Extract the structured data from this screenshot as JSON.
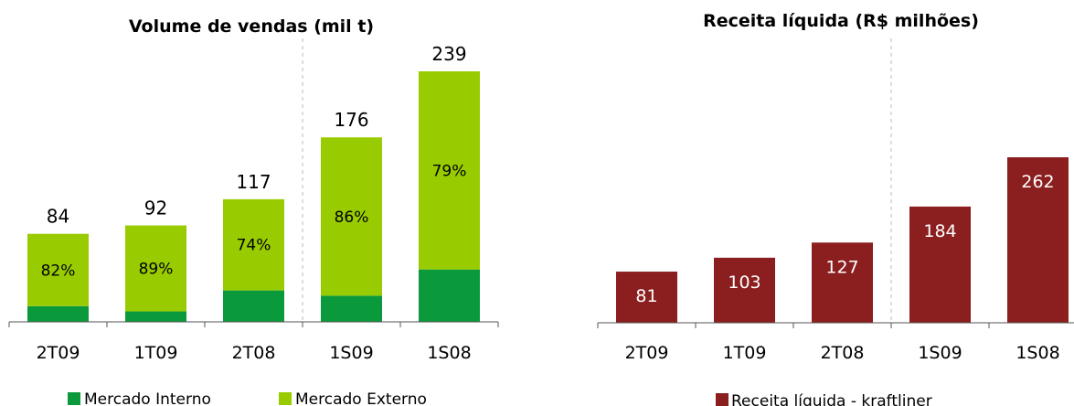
{
  "colors": {
    "interno": "#0a9a3b",
    "externo": "#99cc00",
    "receita": "#8b1e1e",
    "axis": "#555555",
    "divider": "#bbbbbb"
  },
  "chart_data": [
    {
      "type": "bar",
      "stacked": true,
      "title": "Volume de vendas (mil t)",
      "categories": [
        "2T09",
        "1T09",
        "2T08",
        "1S09",
        "1S08"
      ],
      "totals": [
        84,
        92,
        117,
        176,
        239
      ],
      "percent_labels": [
        "82%",
        "89%",
        "74%",
        "86%",
        "79%"
      ],
      "series": [
        {
          "name": "Mercado Interno",
          "values": [
            15,
            10,
            30,
            25,
            50
          ]
        },
        {
          "name": "Mercado Externo",
          "values": [
            69,
            82,
            87,
            151,
            189
          ]
        }
      ],
      "ylim": [
        0,
        239
      ],
      "legend": "bottom",
      "grid": false
    },
    {
      "type": "bar",
      "title": "Receita líquida (R$ milhões)",
      "categories": [
        "2T09",
        "1T09",
        "2T08",
        "1S09",
        "1S08"
      ],
      "series": [
        {
          "name": "Receita líquida - kraftliner",
          "values": [
            81,
            103,
            127,
            184,
            262
          ]
        }
      ],
      "ylim": [
        0,
        262
      ],
      "legend": "bottom",
      "grid": false
    }
  ]
}
